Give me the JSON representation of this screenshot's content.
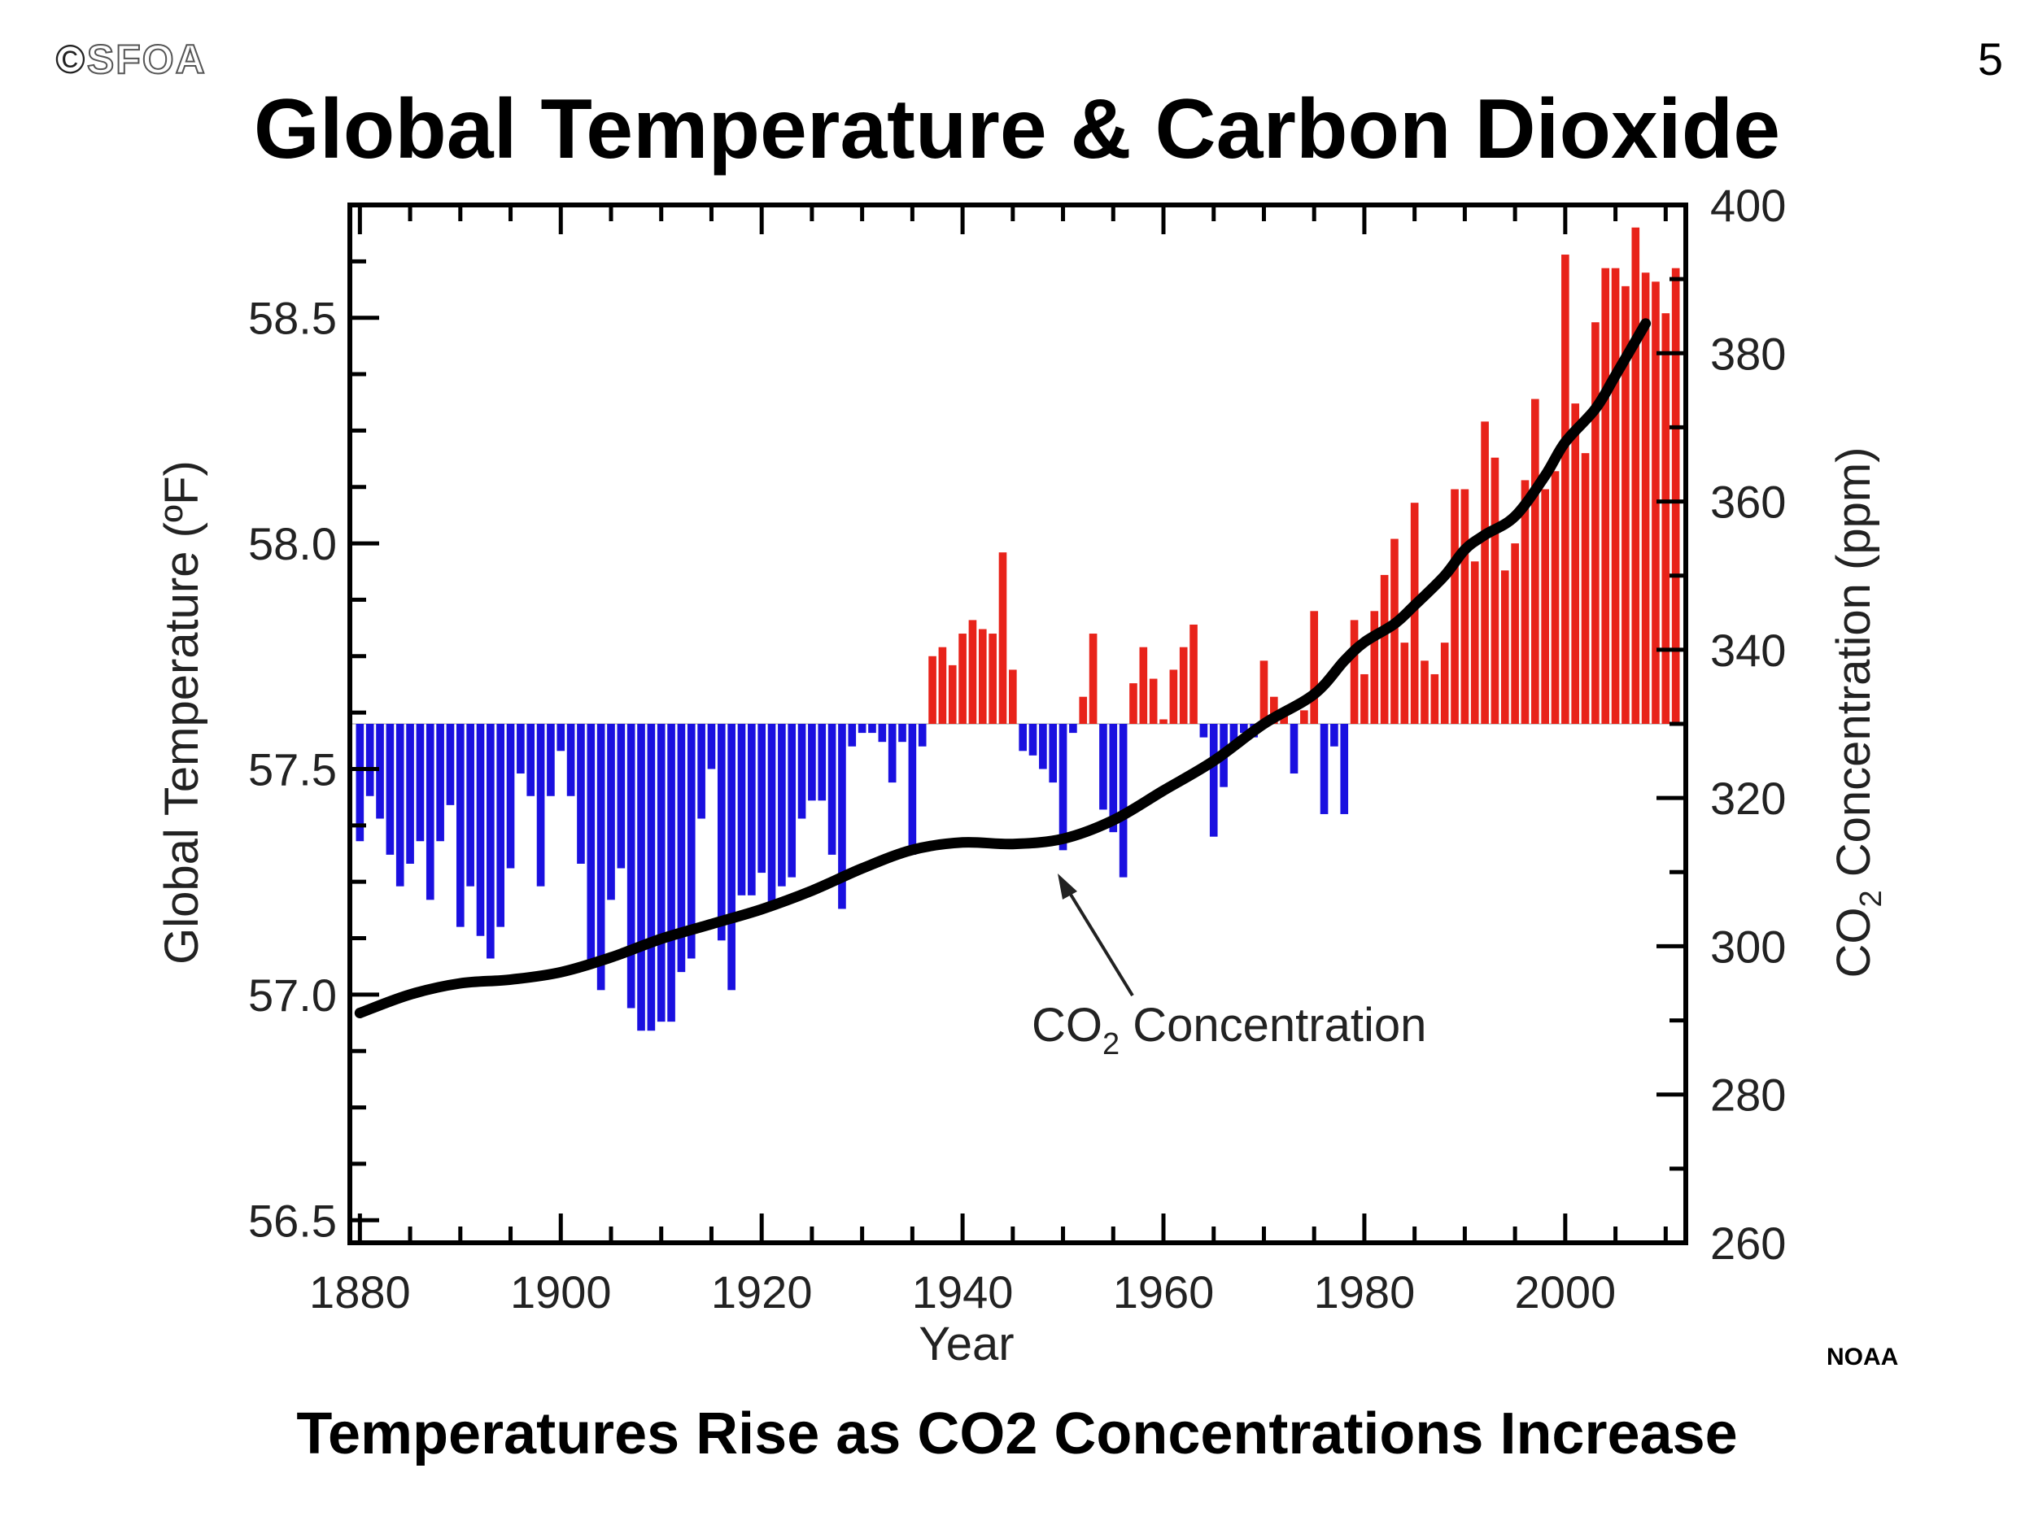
{
  "header": {
    "copyright_symbol": "©",
    "copyright_text": "SFOA",
    "page_number": "5",
    "title": "Global Temperature & Carbon Dioxide"
  },
  "footer": {
    "subtitle": "Temperatures Rise as CO2 Concentrations Increase",
    "source": "NOAA"
  },
  "chart_data": {
    "type": "bar",
    "title": "Global Temperature & Carbon Dioxide",
    "xlabel": "Year",
    "ylabel": "Global Temperature (ºF)",
    "y2label_prefix": "CO",
    "y2label_sub": "2",
    "y2label_suffix": " Concentration (ppm)",
    "xlim": [
      1879,
      2012
    ],
    "ylim": [
      56.45,
      58.75
    ],
    "y2lim": [
      260,
      400
    ],
    "x_ticks": [
      "1880",
      "1900",
      "1920",
      "1940",
      "1960",
      "1980",
      "2000"
    ],
    "y_ticks": [
      "56.5",
      "57.0",
      "57.5",
      "58.0",
      "58.5"
    ],
    "y2_ticks": [
      "260",
      "280",
      "300",
      "320",
      "340",
      "360",
      "380",
      "400"
    ],
    "baseline": 57.6,
    "colors": {
      "above": "#e8231a",
      "below": "#1a10e0",
      "line": "#000000",
      "baseline": "#cccccc"
    },
    "series": [
      {
        "name": "Global Temperature (ºF)",
        "type": "bar",
        "x_start": 1880,
        "values": [
          57.34,
          57.44,
          57.39,
          57.31,
          57.24,
          57.29,
          57.34,
          57.21,
          57.34,
          57.42,
          57.15,
          57.24,
          57.13,
          57.08,
          57.15,
          57.28,
          57.49,
          57.44,
          57.24,
          57.44,
          57.54,
          57.44,
          57.29,
          57.06,
          57.01,
          57.21,
          57.28,
          56.97,
          56.92,
          56.92,
          56.94,
          56.94,
          57.05,
          57.08,
          57.39,
          57.5,
          57.12,
          57.01,
          57.22,
          57.22,
          57.27,
          57.19,
          57.24,
          57.26,
          57.39,
          57.43,
          57.43,
          57.31,
          57.19,
          57.55,
          57.58,
          57.58,
          57.56,
          57.47,
          57.56,
          57.31,
          57.55,
          57.75,
          57.77,
          57.73,
          57.8,
          57.83,
          57.81,
          57.8,
          57.98,
          57.72,
          57.54,
          57.53,
          57.5,
          57.47,
          57.32,
          57.58,
          57.66,
          57.8,
          57.41,
          57.36,
          57.26,
          57.69,
          57.77,
          57.7,
          57.61,
          57.72,
          57.77,
          57.82,
          57.57,
          57.35,
          57.46,
          57.55,
          57.58,
          57.57,
          57.74,
          57.66,
          57.63,
          57.49,
          57.63,
          57.85,
          57.4,
          57.55,
          57.4,
          57.83,
          57.71,
          57.85,
          57.93,
          58.01,
          57.78,
          58.09,
          57.74,
          57.71,
          57.78,
          58.12,
          58.12,
          57.96,
          58.27,
          58.19,
          57.94,
          58.0,
          58.14,
          58.32,
          58.12,
          58.16,
          58.64,
          58.31,
          58.2,
          58.49,
          58.61,
          58.61,
          58.57,
          58.7,
          58.6,
          58.58,
          58.51,
          58.61
        ]
      },
      {
        "name": "CO2 Concentration",
        "type": "line",
        "axis": "y2",
        "x": [
          1880,
          1885,
          1890,
          1895,
          1900,
          1905,
          1910,
          1915,
          1920,
          1925,
          1930,
          1935,
          1940,
          1945,
          1950,
          1955,
          1960,
          1965,
          1970,
          1975,
          1978,
          1980,
          1983,
          1985,
          1988,
          1990,
          1992,
          1995,
          1998,
          2000,
          2003,
          2005,
          2008
        ],
        "values": [
          291,
          293.5,
          295,
          295.5,
          296.5,
          298.5,
          301,
          303,
          305,
          307.5,
          310.5,
          313,
          314,
          313.8,
          314.5,
          317,
          321,
          325,
          330,
          334,
          338.5,
          341,
          343.5,
          346,
          350,
          353.5,
          355.5,
          358,
          363.5,
          368,
          372.5,
          377,
          384
        ]
      }
    ],
    "annotation": {
      "prefix": "CO",
      "sub": "2",
      "suffix": " Concentration",
      "arrow_to_year": 1950
    }
  }
}
